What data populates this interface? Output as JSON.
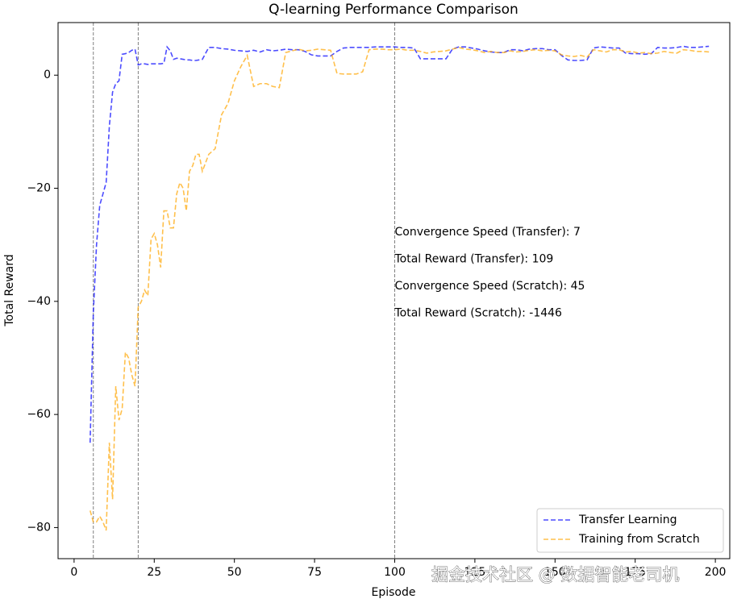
{
  "chart_data": {
    "type": "line",
    "title": "Q-learning Performance Comparison",
    "xlabel": "Episode",
    "ylabel": "Total Reward",
    "x": [
      5,
      6,
      7,
      8,
      9,
      10,
      11,
      12,
      13,
      14,
      15,
      16,
      17,
      18,
      19,
      20,
      21,
      22,
      23,
      24,
      25,
      26,
      27,
      28,
      29,
      30,
      31,
      32,
      33,
      34,
      35,
      36,
      37,
      38,
      39,
      40,
      42,
      44,
      46,
      48,
      50,
      52,
      54,
      56,
      58,
      60,
      62,
      64,
      66,
      68,
      70,
      72,
      74,
      76,
      78,
      80,
      82,
      84,
      86,
      88,
      90,
      92,
      94,
      96,
      98,
      100,
      102,
      104,
      106,
      108,
      110,
      112,
      114,
      116,
      118,
      120,
      122,
      124,
      126,
      128,
      130,
      132,
      134,
      136,
      138,
      140,
      142,
      144,
      146,
      148,
      150,
      152,
      154,
      156,
      158,
      160,
      162,
      164,
      166,
      168,
      170,
      172,
      174,
      176,
      178,
      180,
      182,
      184,
      186,
      188,
      190,
      192,
      194,
      196,
      198
    ],
    "series": [
      {
        "name": "Transfer Learning",
        "color": "#0000ff",
        "values": [
          -65,
          -42,
          -30,
          -23,
          -21,
          -19,
          -9,
          -3,
          -1.5,
          -1,
          3.7,
          3.8,
          4,
          4.4,
          4.6,
          1.8,
          2,
          2,
          1.9,
          2,
          2,
          2,
          2,
          2.1,
          5,
          4.3,
          2.8,
          3,
          2.9,
          2.8,
          2.7,
          2.7,
          2.6,
          2.6,
          2.7,
          2.8,
          4.9,
          4.9,
          4.7,
          4.6,
          4.4,
          4.3,
          4.2,
          4.4,
          4.1,
          4.5,
          4.3,
          4.4,
          4.6,
          4.5,
          4.5,
          4.2,
          3.6,
          3.4,
          3.4,
          3.4,
          4.2,
          4.8,
          4.9,
          4.9,
          4.9,
          4.9,
          5,
          5,
          5,
          5,
          4.9,
          4.9,
          4.8,
          2.9,
          2.9,
          2.9,
          2.9,
          2.9,
          4.6,
          5,
          5,
          4.8,
          4.6,
          4.3,
          4.1,
          4,
          4,
          4.5,
          4.5,
          4.3,
          4.6,
          4.7,
          4.7,
          4.5,
          4.5,
          3.5,
          2.7,
          2.6,
          2.6,
          2.7,
          4.8,
          5,
          4.9,
          4.8,
          4.8,
          3.9,
          3.8,
          3.8,
          3.7,
          3.8,
          4.9,
          4.8,
          4.8,
          4.9,
          5.1,
          4.9,
          4.9,
          5,
          5.1
        ]
      },
      {
        "name": "Training from Scratch",
        "color": "#ffa500",
        "values": [
          -77,
          -79,
          -79,
          -78,
          -79,
          -80.5,
          -65,
          -75,
          -55,
          -61,
          -59,
          -49,
          -50,
          -53,
          -55,
          -41,
          -40,
          -38,
          -39,
          -29,
          -28,
          -30,
          -34,
          -24,
          -24,
          -27,
          -27,
          -21,
          -19,
          -20,
          -24,
          -17,
          -16,
          -14,
          -14,
          -17,
          -14,
          -13,
          -7,
          -5,
          -1,
          1.5,
          3.5,
          -2,
          -1.5,
          -1.5,
          -2,
          -2.2,
          4,
          4.3,
          4.6,
          4.3,
          4.4,
          4.6,
          4.5,
          4.4,
          0.3,
          0.2,
          0.2,
          0.2,
          0.6,
          4.5,
          4.6,
          4.6,
          4.5,
          4.5,
          4.6,
          4.4,
          4.4,
          4.2,
          3.9,
          4.1,
          4.2,
          4.3,
          4.6,
          4.9,
          4.6,
          4.5,
          4.3,
          4,
          4.2,
          4,
          4,
          4.3,
          4.1,
          4.2,
          4.4,
          4.5,
          4.3,
          4.4,
          4.3,
          3.6,
          3.4,
          3.3,
          3.5,
          3.2,
          4.5,
          4.3,
          4.1,
          4.5,
          4.5,
          4.1,
          4.2,
          3.9,
          4,
          3.8,
          3.9,
          4.2,
          4,
          3.9,
          4.5,
          4.4,
          4.2,
          4.2,
          4.1
        ]
      }
    ],
    "xlim": [
      -5,
      204.5
    ],
    "ylim": [
      -85.5,
      9.3
    ],
    "xticks": [
      0,
      25,
      50,
      75,
      100,
      125,
      150,
      175,
      200
    ],
    "yticks": [
      {
        "value": -80,
        "label": "−80"
      },
      {
        "value": -60,
        "label": "−60"
      },
      {
        "value": -40,
        "label": "−40"
      },
      {
        "value": -20,
        "label": "−20"
      },
      0
    ],
    "vlines": [
      6,
      20,
      100
    ],
    "vline_color": "#808080",
    "annotations": [
      "Convergence Speed (Transfer): 7",
      "Total Reward (Transfer): 109",
      "Convergence Speed (Scratch): 45",
      "Total Reward (Scratch): -1446"
    ],
    "legend": "lower right",
    "watermark": "掘金技术社区 @ 数据智能老司机"
  }
}
